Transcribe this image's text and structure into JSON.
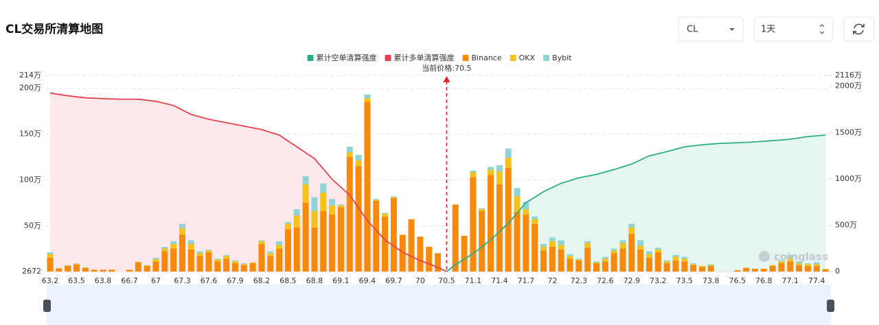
{
  "controls": {
    "symbol": "CL",
    "interval": "1天"
  },
  "chart_data": {
    "type": "bar",
    "title": "CL交易所清算地图",
    "annotation": "当前价格:70.5",
    "watermark": "coinglass",
    "categories": [
      "63.2",
      null,
      null,
      "63.5",
      null,
      null,
      "63.8",
      null,
      null,
      "66.7",
      null,
      null,
      "67",
      null,
      null,
      "67.3",
      null,
      null,
      "67.6",
      null,
      null,
      "67.9",
      null,
      null,
      "68.2",
      null,
      null,
      "68.5",
      null,
      null,
      "68.8",
      null,
      null,
      "69.1",
      null,
      null,
      "69.4",
      null,
      null,
      "69.7",
      null,
      null,
      "70",
      null,
      null,
      "70.5",
      null,
      null,
      "71.1",
      null,
      null,
      "71.4",
      null,
      null,
      "71.7",
      null,
      null,
      "72",
      null,
      null,
      "72.3",
      null,
      null,
      "72.6",
      null,
      null,
      "72.9",
      null,
      null,
      "73.2",
      null,
      null,
      "73.5",
      null,
      null,
      "73.8",
      null,
      null,
      "76.5",
      null,
      null,
      "76.8",
      null,
      null,
      "77.1",
      null,
      null,
      "77.4",
      null
    ],
    "ylim": [
      2672,
      2140000
    ],
    "yticks": [
      2672,
      {
        "value": 500000,
        "label": "50万"
      },
      {
        "value": 1000000,
        "label": "100万"
      },
      {
        "value": 1500000,
        "label": "150万"
      },
      {
        "value": 2000000,
        "label": "200万"
      },
      {
        "value": 2140000,
        "label": "214万"
      }
    ],
    "y2lim": [
      0,
      21160000
    ],
    "y2ticks": [
      0,
      {
        "value": 5000000,
        "label": "500万"
      },
      {
        "value": 10000000,
        "label": "1000万"
      },
      {
        "value": 15000000,
        "label": "1500万"
      },
      {
        "value": 20000000,
        "label": "2000万"
      },
      {
        "value": 21160000,
        "label": "2116万"
      }
    ],
    "grid": true,
    "series": [
      {
        "name": "累计空单清算强度",
        "color": "#2bad88",
        "fill": "#e4f6ef",
        "type": "line",
        "axis": "y2",
        "values": [
          null,
          null,
          null,
          null,
          null,
          null,
          null,
          null,
          null,
          null,
          null,
          null,
          null,
          null,
          null,
          null,
          null,
          null,
          null,
          null,
          null,
          null,
          null,
          null,
          null,
          null,
          null,
          null,
          null,
          null,
          null,
          null,
          null,
          null,
          null,
          null,
          null,
          null,
          null,
          null,
          null,
          null,
          null,
          null,
          null,
          0,
          740000,
          1330000,
          1930000,
          2670000,
          3420000,
          4310000,
          5200000,
          6310000,
          7430000,
          8020000,
          8620000,
          9070000,
          9520000,
          9810000,
          10110000,
          10290000,
          10480000,
          10740000,
          11000000,
          11300000,
          11600000,
          12040000,
          12490000,
          12710000,
          12940000,
          13200000,
          13460000,
          13570000,
          13680000,
          13750000,
          13830000,
          13860000,
          13900000,
          13940000,
          13980000,
          14050000,
          14130000,
          14200000,
          14280000,
          14420000,
          14570000,
          14640000,
          14720000
        ]
      },
      {
        "name": "累计多单清算强度",
        "color": "#e8414f",
        "fill": "#fde9eb",
        "type": "line",
        "axis": "y2",
        "values": [
          19260000,
          19110000,
          18960000,
          18850000,
          18740000,
          18700000,
          18660000,
          18620000,
          18590000,
          18590000,
          18590000,
          18480000,
          18360000,
          18140000,
          17920000,
          17430000,
          16950000,
          16690000,
          16430000,
          16240000,
          16060000,
          15870000,
          15690000,
          15500000,
          15320000,
          15020000,
          14720000,
          14090000,
          13460000,
          12820000,
          12190000,
          11070000,
          9960000,
          9100000,
          8250000,
          6870000,
          5500000,
          4460000,
          3420000,
          2750000,
          2080000,
          1630000,
          1190000,
          820000,
          450000,
          0,
          null,
          null,
          null,
          null,
          null,
          null,
          null,
          null,
          null,
          null,
          null,
          null,
          null,
          null,
          null,
          null,
          null,
          null,
          null,
          null,
          null,
          null,
          null,
          null,
          null,
          null,
          null,
          null,
          null,
          null,
          null,
          null,
          null,
          null,
          null,
          null,
          null,
          null,
          null,
          null,
          null,
          null,
          null
        ]
      },
      {
        "name": "Binance",
        "color": "#f7890c",
        "type": "bar",
        "axis": "y",
        "values": [
          150000,
          30000,
          60000,
          75000,
          40000,
          20000,
          20000,
          20000,
          0,
          18000,
          100000,
          60000,
          110000,
          220000,
          250000,
          400000,
          240000,
          170000,
          210000,
          110000,
          140000,
          90000,
          70000,
          90000,
          300000,
          170000,
          250000,
          460000,
          480000,
          750000,
          480000,
          660000,
          620000,
          700000,
          1250000,
          1150000,
          1850000,
          770000,
          600000,
          800000,
          400000,
          570000,
          380000,
          270000,
          200000,
          0,
          730000,
          390000,
          1030000,
          660000,
          1050000,
          950000,
          1130000,
          650000,
          620000,
          520000,
          230000,
          270000,
          240000,
          140000,
          120000,
          260000,
          90000,
          110000,
          200000,
          250000,
          410000,
          240000,
          150000,
          210000,
          90000,
          120000,
          110000,
          70000,
          50000,
          60000,
          0,
          0,
          15000,
          40000,
          30000,
          30000,
          60000,
          90000,
          110000,
          70000,
          60000,
          60000,
          20000
        ]
      },
      {
        "name": "OKX",
        "color": "#f5c21b",
        "type": "bar",
        "axis": "y",
        "values": [
          40000,
          6000,
          6000,
          10000,
          3000,
          0,
          0,
          0,
          0,
          2000,
          6000,
          6000,
          25000,
          30000,
          50000,
          70000,
          60000,
          30000,
          20000,
          20000,
          30000,
          20000,
          10000,
          10000,
          30000,
          30000,
          40000,
          60000,
          130000,
          200000,
          180000,
          200000,
          100000,
          20000,
          50000,
          60000,
          40000,
          10000,
          30000,
          10000,
          0,
          0,
          0,
          0,
          0,
          0,
          0,
          0,
          50000,
          20000,
          60000,
          140000,
          110000,
          170000,
          60000,
          50000,
          40000,
          60000,
          50000,
          30000,
          10000,
          50000,
          10000,
          30000,
          30000,
          60000,
          70000,
          40000,
          40000,
          30000,
          20000,
          40000,
          30000,
          10000,
          10000,
          10000,
          0,
          0,
          0,
          0,
          0,
          0,
          10000,
          20000,
          40000,
          20000,
          20000,
          20000,
          10000
        ]
      },
      {
        "name": "Bybit",
        "color": "#8fd3d6",
        "type": "bar",
        "axis": "y",
        "values": [
          20000,
          4000,
          4000,
          5000,
          2000,
          0,
          0,
          0,
          0,
          0,
          4000,
          4000,
          15000,
          20000,
          30000,
          50000,
          40000,
          20000,
          10000,
          10000,
          10000,
          10000,
          10000,
          0,
          10000,
          20000,
          40000,
          20000,
          70000,
          90000,
          150000,
          100000,
          70000,
          10000,
          60000,
          60000,
          40000,
          10000,
          10000,
          10000,
          0,
          0,
          0,
          0,
          0,
          0,
          0,
          0,
          20000,
          10000,
          30000,
          70000,
          100000,
          90000,
          80000,
          30000,
          30000,
          40000,
          50000,
          20000,
          10000,
          20000,
          10000,
          20000,
          20000,
          30000,
          40000,
          60000,
          30000,
          20000,
          10000,
          20000,
          20000,
          10000,
          0,
          10000,
          0,
          0,
          0,
          0,
          0,
          0,
          0,
          10000,
          30000,
          20000,
          10000,
          20000,
          0
        ]
      }
    ]
  }
}
